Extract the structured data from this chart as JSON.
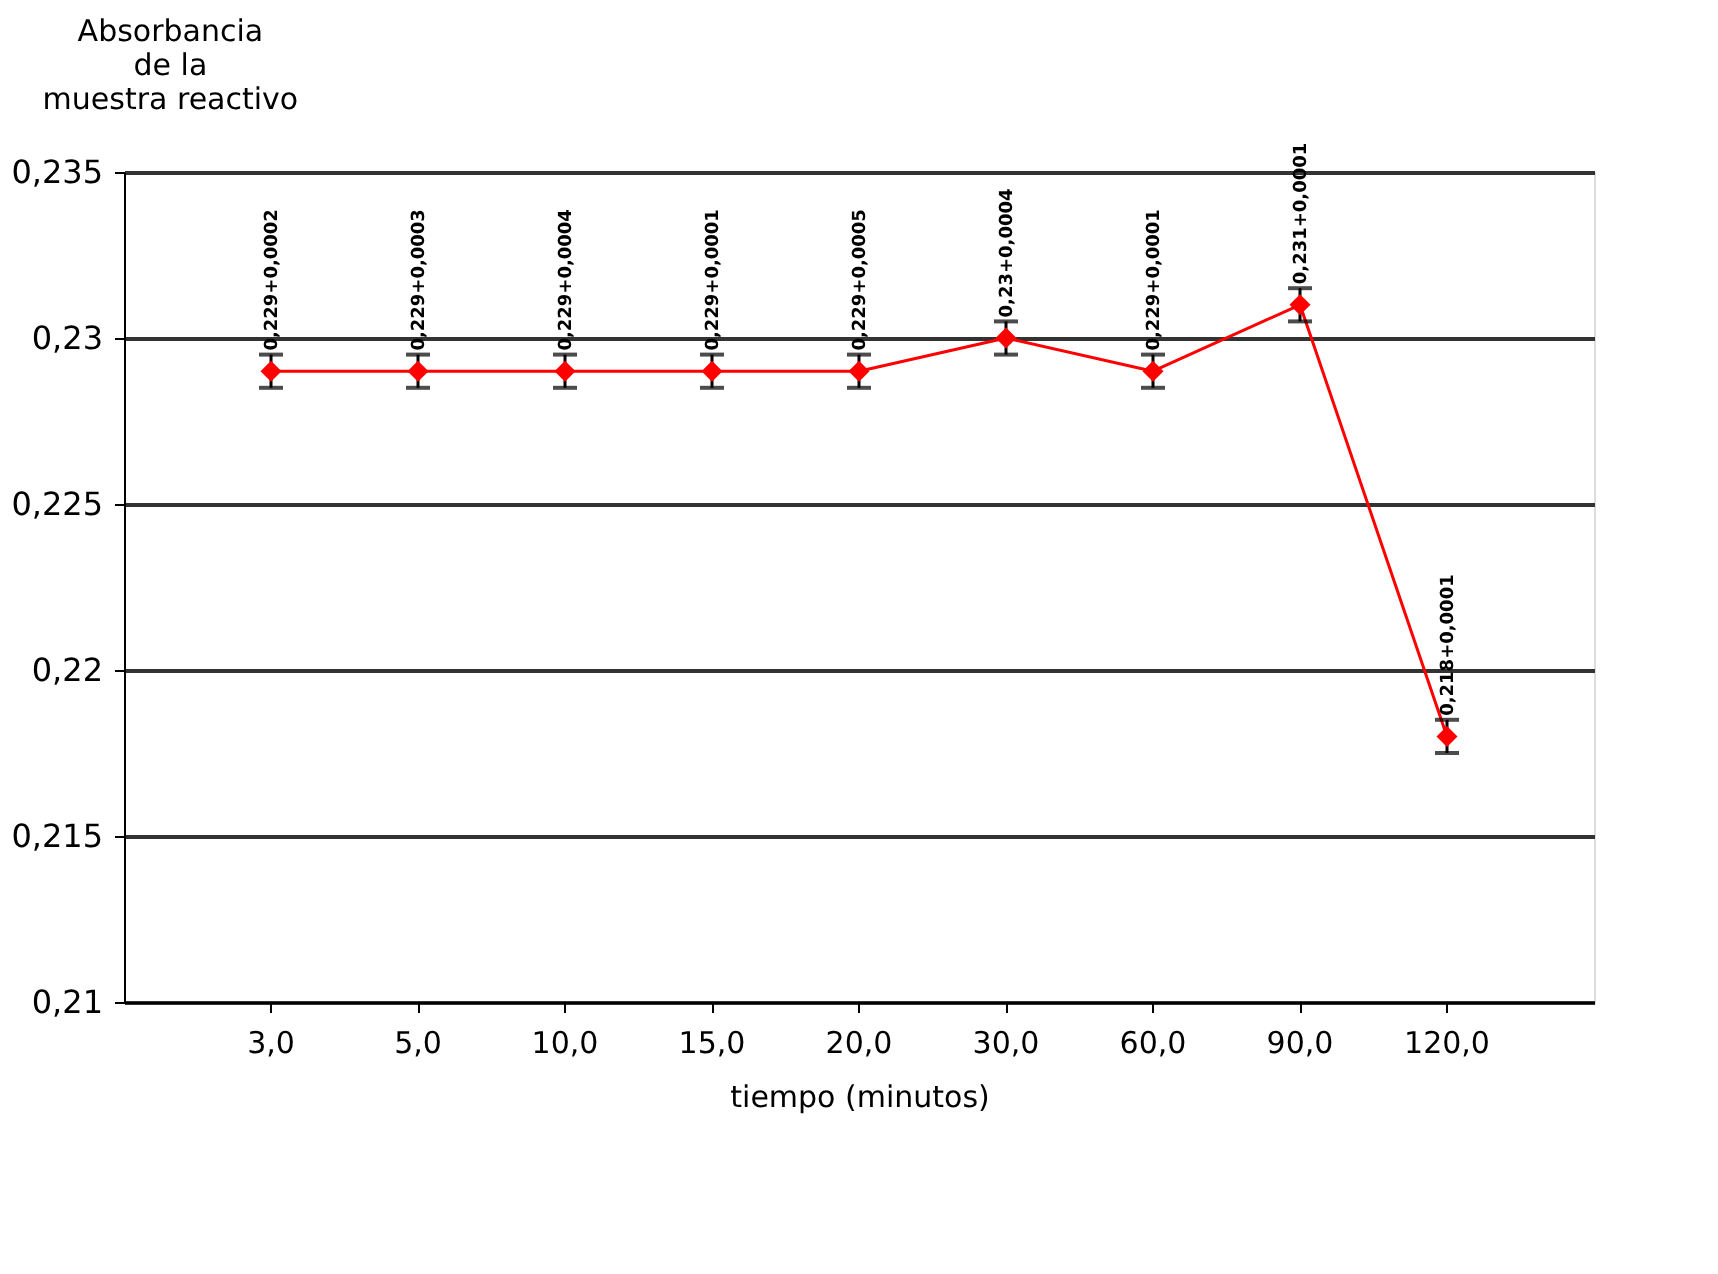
{
  "chart_data": {
    "type": "line",
    "ylabel": "Absorbancia\nde la\nmuestra reactivo",
    "xlabel": "tiempo (minutos)",
    "categories": [
      "3,0",
      "5,0",
      "10,0",
      "15,0",
      "20,0",
      "30,0",
      "60,0",
      "90,0",
      "120,0"
    ],
    "series": [
      {
        "color": "#ff0000",
        "values": [
          0.229,
          0.229,
          0.229,
          0.229,
          0.229,
          0.23,
          0.229,
          0.231,
          0.218
        ],
        "errors": [
          0.0005,
          0.0005,
          0.0005,
          0.0005,
          0.0005,
          0.0005,
          0.0005,
          0.0005,
          0.0005
        ],
        "value_labels": [
          "0,229+0,0002",
          "0,229+0,0003",
          "0,229+0,0004",
          "0,229+0,0001",
          "0,229+0,0005",
          "0,23+0,0004",
          "0,229+0,0001",
          "0,231+0,0001",
          "0,218+0,0001"
        ]
      }
    ],
    "ylim": [
      0.21,
      0.235
    ],
    "yticks": [
      {
        "value": 0.21,
        "label": "0,21"
      },
      {
        "value": 0.215,
        "label": "0,215"
      },
      {
        "value": 0.22,
        "label": "0,22"
      },
      {
        "value": 0.225,
        "label": "0,225"
      },
      {
        "value": 0.23,
        "label": "0,23"
      },
      {
        "value": 0.235,
        "label": "0,235"
      }
    ],
    "grid": "y",
    "marker": "diamond",
    "line_style": "solid"
  }
}
